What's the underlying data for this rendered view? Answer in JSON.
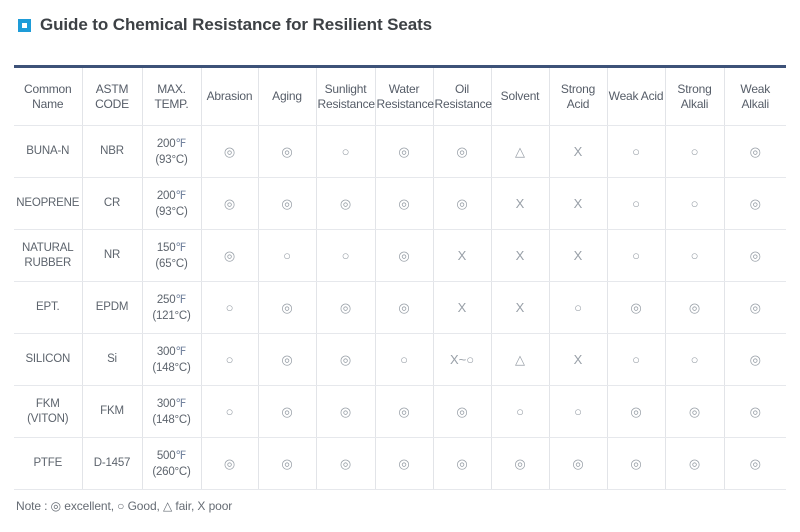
{
  "page": {
    "title": "Guide to Chemical Resistance for Resilient Seats",
    "note": "Note : ◎ excellent, ○ Good, △ fair, X poor"
  },
  "colors": {
    "accent_blue": "#1e9cd8",
    "table_top_border": "#3d5278",
    "grid_line": "#e2e4e8",
    "symbol_gray": "#99a0a8"
  },
  "table": {
    "columns": [
      "Common Name",
      "ASTM CODE",
      "MAX. TEMP.",
      "Abrasion",
      "Aging",
      "Sunlight Resistance",
      "Water Resistance",
      "Oil Resistance",
      "Solvent",
      "Strong Acid",
      "Weak Acid",
      "Strong Alkali",
      "Weak Alkali"
    ],
    "rows": [
      {
        "common_name": "BUNA-N",
        "astm_code": "NBR",
        "max_temp": {
          "f": "200",
          "f_unit": "℉",
          "c": "(93°C)"
        },
        "ratings": [
          "◎",
          "◎",
          "○",
          "◎",
          "◎",
          "△",
          "X",
          "○",
          "○",
          "◎"
        ]
      },
      {
        "common_name": "NEOPRENE",
        "astm_code": "CR",
        "max_temp": {
          "f": "200",
          "f_unit": "℉",
          "c": "(93°C)"
        },
        "ratings": [
          "◎",
          "◎",
          "◎",
          "◎",
          "◎",
          "X",
          "X",
          "○",
          "○",
          "◎"
        ]
      },
      {
        "common_name": "NATURAL RUBBER",
        "astm_code": "NR",
        "max_temp": {
          "f": "150",
          "f_unit": "℉",
          "c": "(65°C)"
        },
        "ratings": [
          "◎",
          "○",
          "○",
          "◎",
          "X",
          "X",
          "X",
          "○",
          "○",
          "◎"
        ]
      },
      {
        "common_name": "EPT.",
        "astm_code": "EPDM",
        "max_temp": {
          "f": "250",
          "f_unit": "℉",
          "c": "(121°C)"
        },
        "ratings": [
          "○",
          "◎",
          "◎",
          "◎",
          "X",
          "X",
          "○",
          "◎",
          "◎",
          "◎"
        ]
      },
      {
        "common_name": "SILICON",
        "astm_code": "Si",
        "max_temp": {
          "f": "300",
          "f_unit": "℉",
          "c": "(148°C)"
        },
        "ratings": [
          "○",
          "◎",
          "◎",
          "○",
          "X~○",
          "△",
          "X",
          "○",
          "○",
          "◎"
        ]
      },
      {
        "common_name": "FKM (VITON)",
        "astm_code": "FKM",
        "max_temp": {
          "f": "300",
          "f_unit": "℉",
          "c": "(148°C)"
        },
        "ratings": [
          "○",
          "◎",
          "◎",
          "◎",
          "◎",
          "○",
          "○",
          "◎",
          "◎",
          "◎"
        ]
      },
      {
        "common_name": "PTFE",
        "astm_code": "D-1457",
        "max_temp": {
          "f": "500",
          "f_unit": "℉",
          "c": "(260°C)"
        },
        "ratings": [
          "◎",
          "◎",
          "◎",
          "◎",
          "◎",
          "◎",
          "◎",
          "◎",
          "◎",
          "◎"
        ]
      }
    ]
  }
}
